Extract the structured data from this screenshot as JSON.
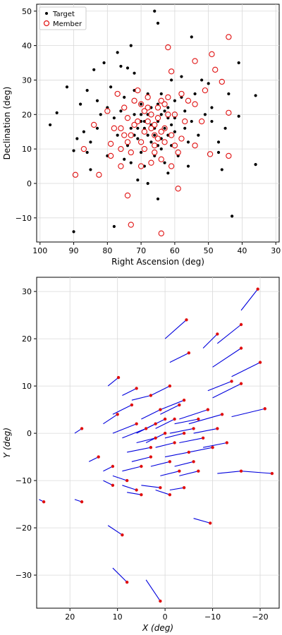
{
  "chart_data": [
    {
      "type": "scatter",
      "title": "",
      "xlabel": "Right Ascension (deg)",
      "ylabel": "Declination (deg)",
      "xlim": [
        101,
        29
      ],
      "ylim": [
        -17,
        52
      ],
      "x_inverted": true,
      "grid": true,
      "legend": {
        "position": "top-left",
        "entries": [
          "Target",
          "Member"
        ]
      },
      "xticks": [
        100,
        90,
        80,
        70,
        60,
        50,
        40,
        30
      ],
      "yticks": [
        -10,
        0,
        10,
        20,
        30,
        40,
        50
      ],
      "series": [
        {
          "name": "Target",
          "marker": "filled-circle",
          "color": "#000000",
          "points": [
            [
              66,
              50
            ],
            [
              65,
              46.5
            ],
            [
              92,
              28
            ],
            [
              97,
              17
            ],
            [
              95,
              20.5
            ],
            [
              90,
              9.5
            ],
            [
              90,
              -14
            ],
            [
              86,
              9
            ],
            [
              85,
              12
            ],
            [
              78,
              -12.5
            ],
            [
              77,
              38
            ],
            [
              73,
              40
            ],
            [
              72,
              32
            ],
            [
              74,
              33.5
            ],
            [
              76,
              34
            ],
            [
              55,
              42.5
            ],
            [
              50,
              29
            ],
            [
              41,
              35
            ],
            [
              36,
              25.5
            ],
            [
              41,
              19.5
            ],
            [
              36,
              5.5
            ],
            [
              43,
              -9.5
            ],
            [
              65,
              -4.5
            ],
            [
              68,
              0
            ],
            [
              71,
              1
            ],
            [
              62,
              3
            ],
            [
              46,
              4
            ],
            [
              47,
              12
            ],
            [
              49,
              18
            ],
            [
              52,
              30
            ],
            [
              58,
              31
            ],
            [
              61,
              30
            ],
            [
              83,
              24
            ],
            [
              86,
              27
            ],
            [
              88,
              23
            ],
            [
              84,
              33
            ],
            [
              81,
              35
            ],
            [
              79,
              28
            ],
            [
              83,
              16
            ],
            [
              80,
              8
            ],
            [
              85,
              4
            ],
            [
              70,
              23
            ],
            [
              68,
              26
            ],
            [
              64,
              26
            ],
            [
              60,
              24
            ],
            [
              57,
              21
            ],
            [
              62,
              19
            ],
            [
              70,
              18
            ],
            [
              66,
              14
            ],
            [
              64,
              10
            ],
            [
              71,
              13
            ],
            [
              68,
              20
            ],
            [
              65,
              18
            ],
            [
              63,
              16
            ],
            [
              69,
              16
            ],
            [
              67,
              12
            ],
            [
              73,
              16
            ],
            [
              72,
              20
            ],
            [
              60,
              15
            ],
            [
              61,
              11
            ],
            [
              74,
              11
            ],
            [
              76,
              21
            ],
            [
              59,
              8
            ],
            [
              56,
              12
            ],
            [
              56,
              5
            ],
            [
              55,
              18
            ],
            [
              75,
              7
            ],
            [
              77,
              14
            ],
            [
              78,
              19
            ],
            [
              80,
              22
            ],
            [
              54,
              26
            ],
            [
              58,
              25
            ],
            [
              72,
              27
            ],
            [
              62,
              22
            ],
            [
              67,
              22
            ],
            [
              70,
              9
            ],
            [
              66,
              8
            ],
            [
              63,
              6
            ],
            [
              57,
              16
            ],
            [
              53,
              14
            ],
            [
              51,
              20
            ],
            [
              49,
              22
            ],
            [
              45,
              16
            ],
            [
              44,
              26
            ],
            [
              47,
              9
            ],
            [
              75,
              25
            ],
            [
              73,
              6
            ],
            [
              69,
              5
            ],
            [
              82,
              20
            ],
            [
              87,
              15
            ],
            [
              89,
              13
            ],
            [
              65,
              23
            ],
            [
              64,
              20
            ],
            [
              66,
              16
            ],
            [
              67,
              17
            ],
            [
              68,
              14
            ],
            [
              69,
              18
            ],
            [
              62,
              14
            ],
            [
              64,
              13
            ],
            [
              65,
              11
            ],
            [
              61,
              17
            ],
            [
              60,
              19
            ],
            [
              71,
              16
            ],
            [
              72,
              14
            ],
            [
              70,
              20
            ],
            [
              63,
              21
            ]
          ]
        },
        {
          "name": "Member",
          "marker": "open-circle",
          "color": "#e01010",
          "points": [
            [
              64,
              -14.5
            ],
            [
              73,
              -12
            ],
            [
              74,
              -3.5
            ],
            [
              59,
              -1.5
            ],
            [
              89.5,
              2.5
            ],
            [
              82.5,
              2.5
            ],
            [
              44,
              42.5
            ],
            [
              62,
              39.5
            ],
            [
              54,
              35.5
            ],
            [
              49,
              37.5
            ],
            [
              46,
              29.5
            ],
            [
              48,
              33
            ],
            [
              44,
              20.5
            ],
            [
              79,
              11.5
            ],
            [
              76,
              10
            ],
            [
              76,
              5
            ],
            [
              61,
              5
            ],
            [
              49.5,
              8.5
            ],
            [
              44,
              8
            ],
            [
              87,
              10
            ],
            [
              84,
              17
            ],
            [
              61,
              32.5
            ],
            [
              54,
              23
            ],
            [
              51,
              27
            ],
            [
              69,
              15
            ],
            [
              66,
              17
            ],
            [
              71,
              18
            ],
            [
              65,
              13
            ],
            [
              67,
              20
            ],
            [
              63,
              16
            ],
            [
              70,
              12
            ],
            [
              68,
              22
            ],
            [
              72,
              24
            ],
            [
              66,
              9
            ],
            [
              74,
              19
            ],
            [
              60,
              20
            ],
            [
              62,
              25
            ],
            [
              73,
              14
            ],
            [
              78,
              16
            ],
            [
              58,
              13
            ],
            [
              57,
              18
            ],
            [
              75,
              22
            ],
            [
              70,
              5
            ],
            [
              67,
              6
            ],
            [
              64,
              7
            ],
            [
              77,
              26
            ],
            [
              58,
              26
            ],
            [
              80,
              21
            ],
            [
              68,
              25
            ],
            [
              71,
              27
            ],
            [
              64,
              24
            ],
            [
              75,
              14
            ],
            [
              69,
              21
            ],
            [
              65,
              19
            ],
            [
              63,
              12
            ],
            [
              59,
              9
            ],
            [
              73,
              9
            ],
            [
              56,
              24
            ],
            [
              52,
              18
            ],
            [
              61,
              14
            ],
            [
              79,
              8
            ],
            [
              54,
              11
            ],
            [
              67,
              16
            ],
            [
              66,
              14
            ],
            [
              68,
              18
            ],
            [
              62,
              20
            ],
            [
              72,
              17
            ],
            [
              70,
              23
            ],
            [
              65,
              22
            ],
            [
              64,
              15
            ],
            [
              60,
              11
            ],
            [
              74,
              12
            ],
            [
              76,
              16
            ],
            [
              69,
              10
            ],
            [
              66,
              11
            ],
            [
              63,
              23
            ]
          ]
        }
      ]
    },
    {
      "type": "line",
      "title": "",
      "xlabel": "X (deg)",
      "ylabel": "Y (deg)",
      "xlim": [
        27,
        -24
      ],
      "ylim": [
        -37,
        33
      ],
      "x_inverted": true,
      "grid": true,
      "xticks": [
        20,
        10,
        0,
        -10,
        -20
      ],
      "yticks": [
        -30,
        -20,
        -10,
        0,
        10,
        20,
        30
      ],
      "segment_color": "#0000dd",
      "point_color": "#e01010",
      "segments": [
        [
          -19.5,
          30.5,
          -16,
          26
        ],
        [
          -4.5,
          24,
          0,
          20
        ],
        [
          -16,
          23,
          -11,
          19
        ],
        [
          -11,
          21,
          -8,
          18
        ],
        [
          -5,
          17,
          -1,
          15
        ],
        [
          -16,
          18,
          -10,
          14
        ],
        [
          -20,
          15,
          -14,
          12
        ],
        [
          -14,
          11,
          -9,
          9
        ],
        [
          -16,
          10.5,
          -10,
          7.5
        ],
        [
          -21,
          5.2,
          -14,
          3.5
        ],
        [
          9.8,
          11.8,
          12,
          10
        ],
        [
          6,
          9.5,
          9,
          8
        ],
        [
          -1,
          10,
          3,
          8
        ],
        [
          -4,
          7,
          1,
          5
        ],
        [
          -9,
          5,
          -3,
          3
        ],
        [
          -12,
          4,
          -5,
          2
        ],
        [
          10,
          4,
          13,
          2
        ],
        [
          17.5,
          1,
          19,
          0
        ],
        [
          14,
          -5,
          16,
          -6
        ],
        [
          11,
          -7,
          13,
          -8
        ],
        [
          3,
          -5,
          7,
          -6
        ],
        [
          -3,
          -8,
          1,
          -9
        ],
        [
          -7,
          -8,
          -3,
          -9
        ],
        [
          -16,
          -8,
          -11,
          -8.5
        ],
        [
          -22.5,
          -8.5,
          -16,
          -8
        ],
        [
          8,
          -10,
          11,
          -9
        ],
        [
          11,
          -11,
          13,
          -10
        ],
        [
          6,
          -12,
          9,
          -11
        ],
        [
          1,
          -11.5,
          5,
          -11
        ],
        [
          -4,
          -11.5,
          -1,
          -12
        ],
        [
          -9.5,
          -19,
          -6,
          -18
        ],
        [
          9,
          -21.5,
          12,
          -19.5
        ],
        [
          17.5,
          -14.5,
          19,
          -14
        ],
        [
          25.5,
          -14.5,
          26.5,
          -14
        ],
        [
          8,
          -31.5,
          11,
          -28.5
        ],
        [
          1,
          -35.5,
          4,
          -31
        ],
        [
          -1,
          -13,
          2,
          -12
        ],
        [
          5,
          -13,
          8,
          -12.5
        ],
        [
          2,
          2,
          6,
          0
        ],
        [
          0,
          0,
          4,
          -2
        ],
        [
          -2,
          -2,
          2,
          -3
        ],
        [
          3,
          -3,
          8,
          -4
        ],
        [
          -5,
          -4,
          0,
          -5
        ],
        [
          -8,
          -1,
          -3,
          -2
        ],
        [
          -10,
          -3,
          -5,
          -4
        ],
        [
          1,
          5,
          5,
          3
        ],
        [
          -2,
          3,
          2,
          1
        ],
        [
          4,
          1,
          9,
          -1
        ],
        [
          -6,
          1,
          -1,
          0
        ],
        [
          6,
          2,
          11,
          0
        ],
        [
          -11,
          1,
          -6,
          0
        ],
        [
          -13,
          -2,
          -8,
          -3
        ],
        [
          5,
          -7,
          9,
          -8
        ],
        [
          -1,
          -6,
          3,
          -7
        ],
        [
          -6,
          -6,
          -2,
          -7
        ],
        [
          7,
          6,
          11,
          4
        ],
        [
          -3,
          6,
          1,
          4
        ],
        [
          3,
          8,
          7,
          7
        ],
        [
          0,
          3,
          4,
          1
        ],
        [
          -4,
          0,
          0,
          -1
        ],
        [
          2,
          -1,
          6,
          -2
        ],
        [
          -7,
          3,
          -2,
          2
        ]
      ]
    }
  ]
}
